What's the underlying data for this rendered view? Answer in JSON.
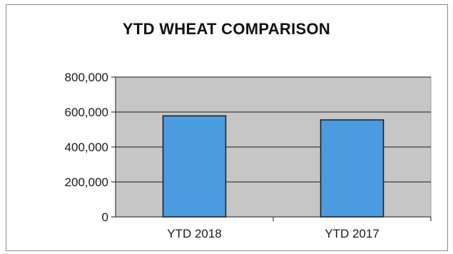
{
  "chart_data": {
    "type": "bar",
    "title": "YTD WHEAT COMPARISON",
    "categories": [
      "YTD 2018",
      "YTD 2017"
    ],
    "values": [
      578000,
      555000
    ],
    "ylim": [
      0,
      800000
    ],
    "yticks": [
      0,
      200000,
      400000,
      600000,
      800000
    ],
    "ytick_labels": [
      "0",
      "200,000",
      "400,000",
      "600,000",
      "800,000"
    ],
    "xlabel": "",
    "ylabel": "",
    "grid": true,
    "legend": "none",
    "colors": {
      "bar": "#4a9be0",
      "bar_stroke": "#1a1a1a",
      "plot_background": "#c6c6c6",
      "gridline": "#1a1a1a"
    }
  }
}
